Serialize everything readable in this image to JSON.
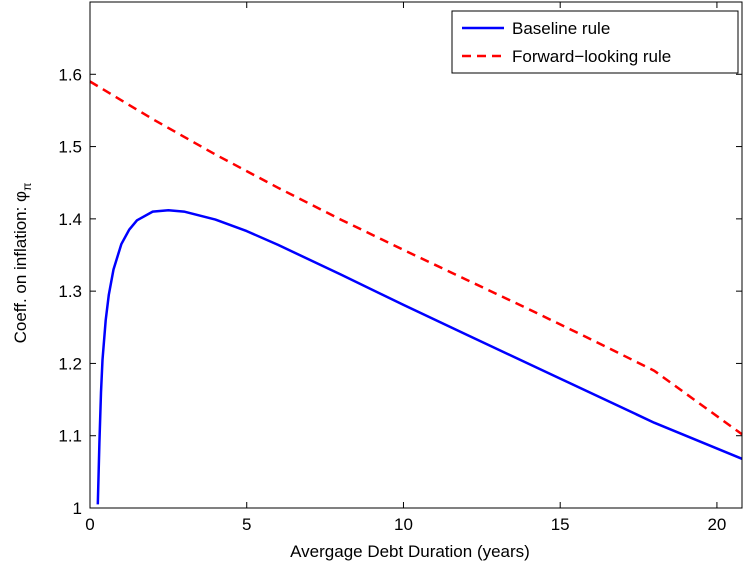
{
  "chart_data": {
    "type": "line",
    "title": "",
    "xlabel": "Avergage Debt Duration (years)",
    "ylabel_text": "Coeff. on inflation: ",
    "ylabel_symbol": "φ",
    "ylabel_subscript": "π",
    "xlim": [
      0,
      20.8
    ],
    "ylim": [
      1.0,
      1.7
    ],
    "x_ticks": [
      0,
      5,
      10,
      15,
      20
    ],
    "y_ticks": [
      1.0,
      1.1,
      1.2,
      1.3,
      1.4,
      1.5,
      1.6
    ],
    "x_tick_labels": [
      "0",
      "5",
      "10",
      "15",
      "20"
    ],
    "y_tick_labels": [
      "1",
      "1.1",
      "1.2",
      "1.3",
      "1.4",
      "1.5",
      "1.6"
    ],
    "grid": false,
    "legend_position": "top-right",
    "series": [
      {
        "name": "Baseline rule",
        "color": "#0000ff",
        "style": "solid",
        "x": [
          0.25,
          0.3,
          0.35,
          0.4,
          0.5,
          0.6,
          0.75,
          1.0,
          1.25,
          1.5,
          2.0,
          2.5,
          3.0,
          4.0,
          5.0,
          6.0,
          8.0,
          10.0,
          12.0,
          15.0,
          18.0,
          20.8
        ],
        "y": [
          1.005,
          1.09,
          1.16,
          1.205,
          1.26,
          1.295,
          1.33,
          1.365,
          1.385,
          1.398,
          1.41,
          1.412,
          1.41,
          1.399,
          1.383,
          1.364,
          1.323,
          1.281,
          1.24,
          1.179,
          1.118,
          1.068
        ]
      },
      {
        "name": "Forward−looking rule",
        "color": "#ff0000",
        "style": "dashed",
        "x": [
          0.0,
          2.0,
          4.0,
          6.0,
          8.0,
          10.0,
          12.0,
          14.0,
          16.0,
          18.0,
          20.8
        ],
        "y": [
          1.59,
          1.538,
          1.489,
          1.443,
          1.399,
          1.357,
          1.316,
          1.275,
          1.233,
          1.19,
          1.102
        ]
      }
    ]
  }
}
